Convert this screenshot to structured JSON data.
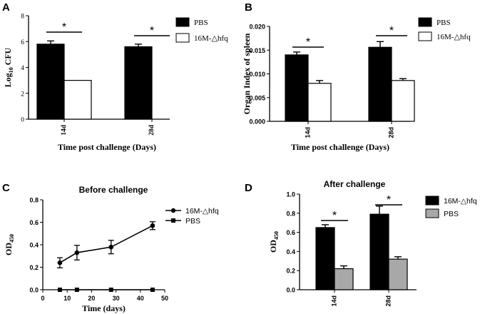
{
  "colors": {
    "black": "#000000",
    "white": "#ffffff",
    "gray": "#a8a8a8",
    "axis": "#000000"
  },
  "chart_data": [
    {
      "panel": "A",
      "type": "bar",
      "title": "",
      "xlabel": "Time post challenge (Days)",
      "ylabel_main": "Log",
      "ylabel_sub": "10",
      "ylabel_suffix": " CFU",
      "categories": [
        "14d",
        "28d"
      ],
      "ylim": [
        0,
        8
      ],
      "yticks": [
        0,
        2,
        4,
        6,
        8
      ],
      "ytick_labels": [
        "0",
        "2",
        "4",
        "6",
        "8"
      ],
      "series": [
        {
          "name": "PBS",
          "values": [
            5.8,
            5.6
          ],
          "errors": [
            0.25,
            0.2
          ],
          "fill": "#000000"
        },
        {
          "name": "16M-△hfq",
          "values": [
            3.0,
            0
          ],
          "errors": [
            0,
            0
          ],
          "fill": "#ffffff"
        }
      ],
      "significance": [
        "*",
        "*"
      ],
      "legend_position": "right"
    },
    {
      "panel": "B",
      "type": "bar",
      "title": "",
      "xlabel": "Time post challenge (Days)",
      "ylabel": "Organ Index of spleen",
      "categories": [
        "14d",
        "28d"
      ],
      "ylim": [
        0,
        0.02
      ],
      "yticks": [
        0,
        0.005,
        0.01,
        0.015,
        0.02
      ],
      "ytick_labels": [
        "0.000",
        "0.005",
        "0.010",
        "0.015",
        "0.020"
      ],
      "series": [
        {
          "name": "PBS",
          "values": [
            0.014,
            0.0156
          ],
          "errors": [
            0.0006,
            0.0012
          ],
          "fill": "#000000"
        },
        {
          "name": "16M-△hfq",
          "values": [
            0.008,
            0.0086
          ],
          "errors": [
            0.0006,
            0.0004
          ],
          "fill": "#ffffff"
        }
      ],
      "significance": [
        "*",
        "*"
      ],
      "legend_position": "right"
    },
    {
      "panel": "C",
      "type": "line",
      "title": "Before challenge",
      "xlabel": "Time (days)",
      "ylabel_main": "OD",
      "ylabel_sub": "450",
      "xlim": [
        0,
        50
      ],
      "xticks": [
        0,
        10,
        20,
        30,
        40,
        50
      ],
      "ylim": [
        0,
        0.8
      ],
      "yticks": [
        0,
        0.2,
        0.4,
        0.6,
        0.8
      ],
      "ytick_labels": [
        "0.0",
        "0.2",
        "0.4",
        "0.6",
        "0.8"
      ],
      "series": [
        {
          "name": "16M-△hfq",
          "marker": "circle",
          "x": [
            7,
            14,
            28,
            45
          ],
          "y": [
            0.24,
            0.33,
            0.38,
            0.57
          ],
          "errors": [
            0.045,
            0.065,
            0.06,
            0.035
          ]
        },
        {
          "name": "PBS",
          "marker": "square",
          "x": [
            7,
            14,
            28,
            45
          ],
          "y": [
            0,
            0,
            0,
            0
          ],
          "errors": [
            0,
            0,
            0,
            0
          ]
        }
      ],
      "legend_position": "top-right"
    },
    {
      "panel": "D",
      "type": "bar",
      "title": "After challenge",
      "xlabel": "",
      "ylabel_main": "OD",
      "ylabel_sub": "450",
      "categories": [
        "14d",
        "28d"
      ],
      "ylim": [
        0,
        1.0
      ],
      "yticks": [
        0,
        0.2,
        0.4,
        0.6,
        0.8,
        1.0
      ],
      "ytick_labels": [
        "0.0",
        "0.2",
        "0.4",
        "0.6",
        "0.8",
        "1.0"
      ],
      "series": [
        {
          "name": "16M-△hfq",
          "values": [
            0.65,
            0.79
          ],
          "errors": [
            0.03,
            0.085
          ],
          "fill": "#000000"
        },
        {
          "name": "PBS",
          "values": [
            0.22,
            0.32
          ],
          "errors": [
            0.03,
            0.025
          ],
          "fill": "#a8a8a8"
        }
      ],
      "significance": [
        "*",
        "*"
      ],
      "legend_position": "top-right"
    }
  ]
}
